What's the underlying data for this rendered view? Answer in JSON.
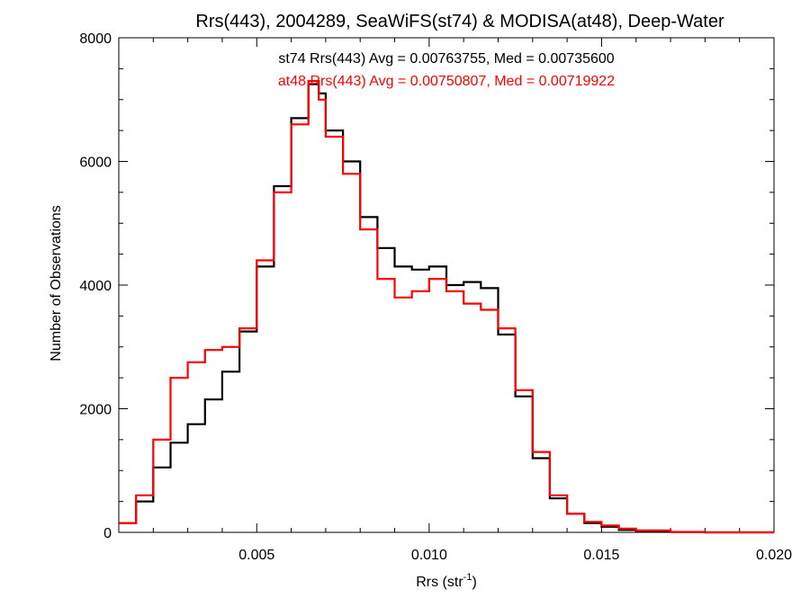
{
  "chart_data": {
    "type": "line",
    "title": "Rrs(443), 2004289, SeaWiFS(st74) & MODISA(at48), Deep-Water",
    "xlabel": "Rrs (str",
    "xlabel_sup": "-1",
    "xlabel_close": ")",
    "ylabel": "Number of Observations",
    "xlim": [
      0.001,
      0.02
    ],
    "ylim": [
      0,
      8000
    ],
    "x_ticks": [
      0.005,
      0.01,
      0.015,
      0.02
    ],
    "x_tick_labels": [
      "0.005",
      "0.010",
      "0.015",
      "0.020"
    ],
    "y_ticks": [
      0,
      2000,
      4000,
      6000,
      8000
    ],
    "y_tick_labels": [
      "0",
      "2000",
      "4000",
      "6000",
      "8000"
    ],
    "grid": false,
    "legend_position": "top-center",
    "series": [
      {
        "name": "st74",
        "label": "st74 Rrs(443) Avg = 0.00763755, Med = 0.00735600",
        "color": "#000000",
        "points": [
          [
            0.001,
            150
          ],
          [
            0.0015,
            500
          ],
          [
            0.002,
            1050
          ],
          [
            0.0025,
            1450
          ],
          [
            0.003,
            1750
          ],
          [
            0.0035,
            2150
          ],
          [
            0.004,
            2600
          ],
          [
            0.0045,
            3250
          ],
          [
            0.005,
            4300
          ],
          [
            0.0055,
            5600
          ],
          [
            0.006,
            6700
          ],
          [
            0.0065,
            7250
          ],
          [
            0.0068,
            7100
          ],
          [
            0.007,
            6500
          ],
          [
            0.0075,
            6000
          ],
          [
            0.008,
            5100
          ],
          [
            0.0085,
            4600
          ],
          [
            0.009,
            4300
          ],
          [
            0.0095,
            4250
          ],
          [
            0.01,
            4300
          ],
          [
            0.0105,
            4000
          ],
          [
            0.011,
            4050
          ],
          [
            0.0115,
            3950
          ],
          [
            0.012,
            3200
          ],
          [
            0.0125,
            2200
          ],
          [
            0.013,
            1200
          ],
          [
            0.0135,
            550
          ],
          [
            0.014,
            300
          ],
          [
            0.0145,
            150
          ],
          [
            0.015,
            90
          ],
          [
            0.0155,
            40
          ],
          [
            0.016,
            20
          ],
          [
            0.017,
            5
          ],
          [
            0.018,
            0
          ],
          [
            0.02,
            0
          ]
        ]
      },
      {
        "name": "at48",
        "label": "at48 Rrs(443) Avg = 0.00750807, Med = 0.00719922",
        "color": "#ff0000",
        "points": [
          [
            0.001,
            150
          ],
          [
            0.0015,
            600
          ],
          [
            0.002,
            1500
          ],
          [
            0.0025,
            2500
          ],
          [
            0.003,
            2750
          ],
          [
            0.0035,
            2950
          ],
          [
            0.004,
            3000
          ],
          [
            0.0045,
            3300
          ],
          [
            0.005,
            4400
          ],
          [
            0.0055,
            5500
          ],
          [
            0.006,
            6600
          ],
          [
            0.0065,
            7300
          ],
          [
            0.0068,
            7000
          ],
          [
            0.007,
            6400
          ],
          [
            0.0075,
            5800
          ],
          [
            0.008,
            4900
          ],
          [
            0.0085,
            4100
          ],
          [
            0.009,
            3800
          ],
          [
            0.0095,
            3900
          ],
          [
            0.01,
            4100
          ],
          [
            0.0105,
            3900
          ],
          [
            0.011,
            3700
          ],
          [
            0.0115,
            3600
          ],
          [
            0.012,
            3300
          ],
          [
            0.0125,
            2300
          ],
          [
            0.013,
            1300
          ],
          [
            0.0135,
            600
          ],
          [
            0.014,
            300
          ],
          [
            0.0145,
            170
          ],
          [
            0.015,
            110
          ],
          [
            0.0155,
            60
          ],
          [
            0.016,
            30
          ],
          [
            0.017,
            8
          ],
          [
            0.018,
            0
          ],
          [
            0.02,
            0
          ]
        ]
      }
    ]
  }
}
